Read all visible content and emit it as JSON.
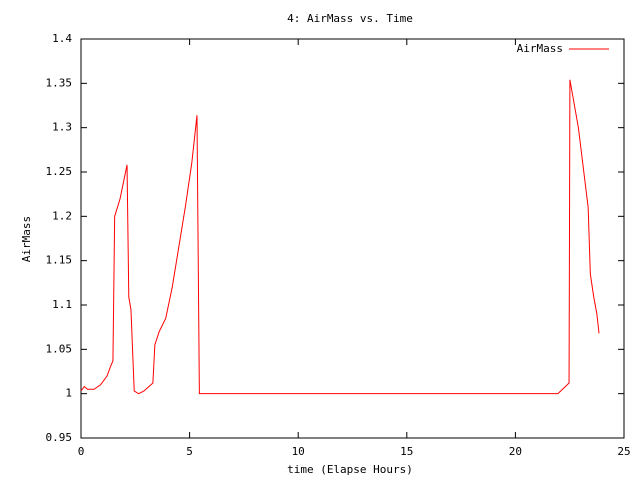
{
  "chart_data": {
    "type": "line",
    "title": "4: AirMass vs. Time",
    "xlabel": "time (Elapse Hours)",
    "ylabel": "AirMass",
    "x": [
      0,
      0.15,
      0.3,
      0.6,
      0.9,
      1.2,
      1.35,
      1.47,
      1.55,
      1.8,
      2.12,
      2.2,
      2.3,
      2.45,
      2.65,
      2.9,
      3.31,
      3.4,
      3.6,
      3.9,
      4.2,
      4.4,
      4.8,
      5.1,
      5.34,
      5.45,
      21.96,
      22.47,
      22.51,
      22.9,
      23.1,
      23.35,
      23.45,
      23.6,
      23.75,
      23.85
    ],
    "series": [
      {
        "name": "AirMass",
        "color": "#ff0000",
        "values": [
          1.003,
          1.008,
          1.005,
          1.005,
          1.01,
          1.02,
          1.03,
          1.037,
          1.2,
          1.22,
          1.258,
          1.109,
          1.095,
          1.003,
          1.0,
          1.003,
          1.012,
          1.055,
          1.07,
          1.085,
          1.12,
          1.15,
          1.21,
          1.26,
          1.314,
          1.0,
          1.0,
          1.012,
          1.354,
          1.3,
          1.26,
          1.21,
          1.135,
          1.11,
          1.09,
          1.068
        ]
      }
    ],
    "xlim": [
      0,
      25
    ],
    "xticks": [
      0,
      5,
      10,
      15,
      20,
      25
    ],
    "ylim": [
      0.95,
      1.4
    ],
    "yticks": [
      0.95,
      1,
      1.05,
      1.1,
      1.15,
      1.2,
      1.25,
      1.3,
      1.35,
      1.4
    ],
    "grid": false,
    "legend": "top right"
  }
}
